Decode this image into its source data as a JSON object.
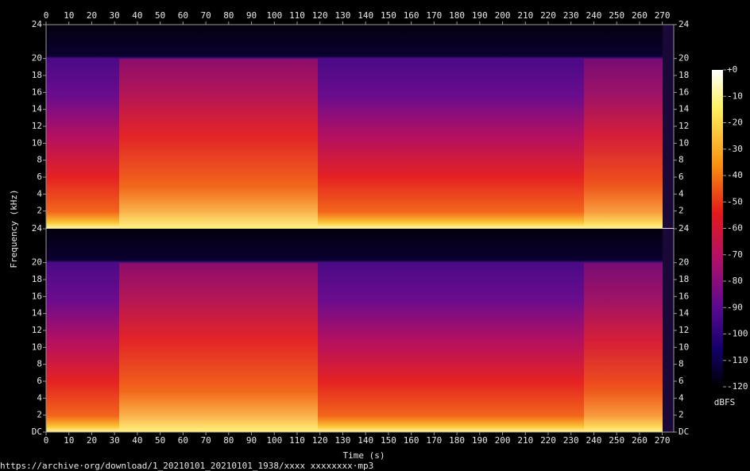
{
  "chart_data": [
    {
      "type": "spectrogram",
      "y_label": "Frequency (kHz)",
      "xlim": [
        0,
        275
      ],
      "xticks": [
        0,
        10,
        20,
        30,
        40,
        50,
        60,
        70,
        80,
        90,
        100,
        110,
        120,
        130,
        140,
        150,
        160,
        170,
        180,
        190,
        200,
        210,
        220,
        230,
        240,
        250,
        260,
        270
      ],
      "ylim": [
        0,
        24
      ],
      "yticks": [
        2,
        4,
        6,
        8,
        10,
        12,
        14,
        16,
        18,
        20,
        24
      ]
    },
    {
      "type": "spectrogram",
      "x_label": "Time (s)",
      "xlim": [
        0,
        275
      ],
      "xticks": [
        0,
        10,
        20,
        30,
        40,
        50,
        60,
        70,
        80,
        90,
        100,
        110,
        120,
        130,
        140,
        150,
        160,
        170,
        180,
        190,
        200,
        210,
        220,
        230,
        240,
        250,
        260,
        270
      ],
      "ylim": [
        0,
        24
      ],
      "yticks": [
        {
          "value": 0,
          "label": "DC"
        },
        2,
        4,
        6,
        8,
        10,
        12,
        14,
        16,
        18,
        20,
        24
      ]
    }
  ],
  "colorbar": {
    "label": "dBFS",
    "lim": [
      -120,
      0
    ],
    "ticks": [
      {
        "value": 0,
        "label": "+0"
      },
      -10,
      -20,
      -30,
      -40,
      -50,
      -60,
      -70,
      -80,
      -90,
      -100,
      -110,
      -120
    ]
  },
  "source_url": "https://archive·org/download/1_20210101_20210101_1938/xxxx xxxxxxxx·mp3"
}
